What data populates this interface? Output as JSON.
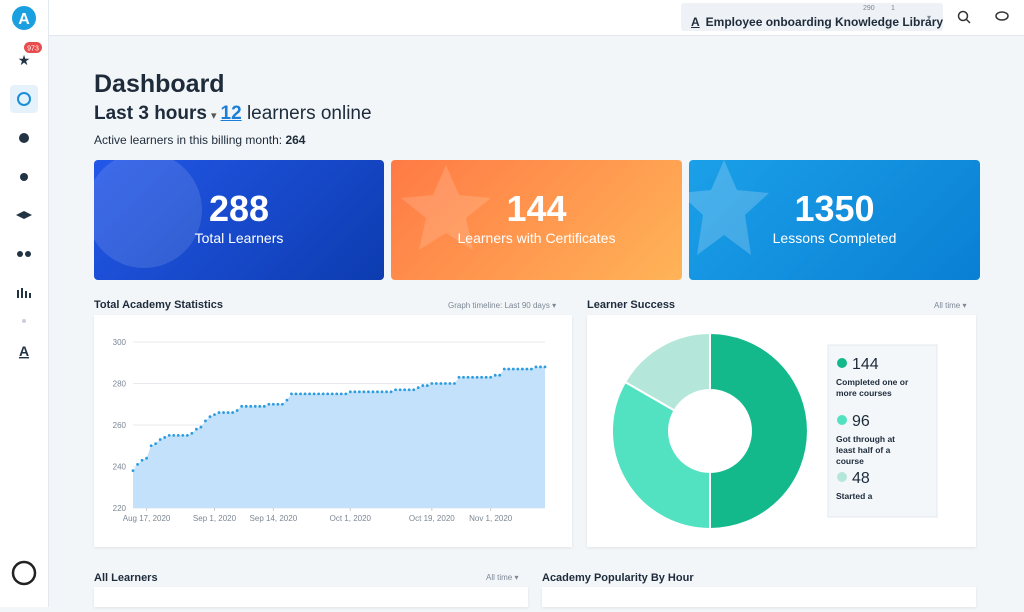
{
  "topbar": {
    "library": "Employee onboarding Knowledge Library",
    "users": "290",
    "viewers": "1"
  },
  "sidebar": {
    "badge": "973"
  },
  "header": {
    "title": "Dashboard",
    "period": "Last 3 hours",
    "online_count": "12",
    "online_text": "learners online",
    "active_label": "Active learners in this billing month:",
    "active_value": "264"
  },
  "cards": [
    {
      "value": "288",
      "label": "Total Learners"
    },
    {
      "value": "144",
      "label": "Learners with Certificates"
    },
    {
      "value": "1350",
      "label": "Lessons Completed"
    }
  ],
  "lower": {
    "all_learners": "All Learners",
    "all_learners_filter": "All time",
    "popularity": "Academy Popularity By Hour"
  },
  "chart_data": [
    {
      "type": "line",
      "title": "Total Academy Statistics",
      "timeline_label": "Graph timeline:",
      "timeline": "Last 90 days",
      "color": "#2b9ce0",
      "fill": "#c3e1fa",
      "x": [
        "2020-08-14",
        "2020-08-15",
        "2020-08-16",
        "2020-08-17",
        "2020-08-18",
        "2020-08-19",
        "2020-08-20",
        "2020-08-21",
        "2020-08-22",
        "2020-08-23",
        "2020-08-24",
        "2020-08-25",
        "2020-08-26",
        "2020-08-27",
        "2020-08-28",
        "2020-08-29",
        "2020-08-30",
        "2020-08-31",
        "2020-09-01",
        "2020-09-02",
        "2020-09-03",
        "2020-09-04",
        "2020-09-05",
        "2020-09-06",
        "2020-09-07",
        "2020-09-08",
        "2020-09-09",
        "2020-09-10",
        "2020-09-11",
        "2020-09-12",
        "2020-09-13",
        "2020-09-14",
        "2020-09-15",
        "2020-09-16",
        "2020-09-17",
        "2020-09-18",
        "2020-09-19",
        "2020-09-20",
        "2020-09-21",
        "2020-09-22",
        "2020-09-23",
        "2020-09-24",
        "2020-09-25",
        "2020-09-26",
        "2020-09-27",
        "2020-09-28",
        "2020-09-29",
        "2020-09-30",
        "2020-10-01",
        "2020-10-02",
        "2020-10-03",
        "2020-10-04",
        "2020-10-05",
        "2020-10-06",
        "2020-10-07",
        "2020-10-08",
        "2020-10-09",
        "2020-10-10",
        "2020-10-11",
        "2020-10-12",
        "2020-10-13",
        "2020-10-14",
        "2020-10-15",
        "2020-10-16",
        "2020-10-17",
        "2020-10-18",
        "2020-10-19",
        "2020-10-20",
        "2020-10-21",
        "2020-10-22",
        "2020-10-23",
        "2020-10-24",
        "2020-10-25",
        "2020-10-26",
        "2020-10-27",
        "2020-10-28",
        "2020-10-29",
        "2020-10-30",
        "2020-10-31",
        "2020-11-01",
        "2020-11-02",
        "2020-11-03",
        "2020-11-04",
        "2020-11-05",
        "2020-11-06",
        "2020-11-07",
        "2020-11-08",
        "2020-11-09",
        "2020-11-10",
        "2020-11-11",
        "2020-11-12",
        "2020-11-13"
      ],
      "values": [
        238,
        241,
        243,
        244,
        250,
        251,
        253,
        254,
        255,
        255,
        255,
        255,
        255,
        256,
        258,
        259,
        262,
        264,
        265,
        266,
        266,
        266,
        266,
        267,
        269,
        269,
        269,
        269,
        269,
        269,
        270,
        270,
        270,
        270,
        272,
        275,
        275,
        275,
        275,
        275,
        275,
        275,
        275,
        275,
        275,
        275,
        275,
        275,
        276,
        276,
        276,
        276,
        276,
        276,
        276,
        276,
        276,
        276,
        277,
        277,
        277,
        277,
        277,
        278,
        279,
        279,
        280,
        280,
        280,
        280,
        280,
        280,
        283,
        283,
        283,
        283,
        283,
        283,
        283,
        283,
        284,
        284,
        287,
        287,
        287,
        287,
        287,
        287,
        287,
        288,
        288,
        288
      ],
      "xlim": [
        "2020-08-14",
        "2020-11-13"
      ],
      "xticks": [
        {
          "value": "2020-08-17",
          "label": "Aug 17, 2020"
        },
        {
          "value": "2020-09-01",
          "label": "Sep 1, 2020"
        },
        {
          "value": "2020-09-14",
          "label": "Sep 14, 2020"
        },
        {
          "value": "2020-10-01",
          "label": "Oct 1, 2020"
        },
        {
          "value": "2020-10-19",
          "label": "Oct 19, 2020"
        },
        {
          "value": "2020-11-01",
          "label": "Nov 1, 2020"
        }
      ],
      "ylim": [
        220,
        300
      ],
      "yticks": [
        220,
        240,
        260,
        280,
        300
      ],
      "grid": true
    },
    {
      "type": "pie",
      "title": "Learner Success",
      "filter": "All time",
      "categories": [
        "Completed one or more courses",
        "Got through at least half of a course",
        "Started a"
      ],
      "values": [
        144,
        96,
        48
      ],
      "colors": [
        "#13b98b",
        "#52e1c1",
        "#b4e7d9"
      ]
    }
  ]
}
